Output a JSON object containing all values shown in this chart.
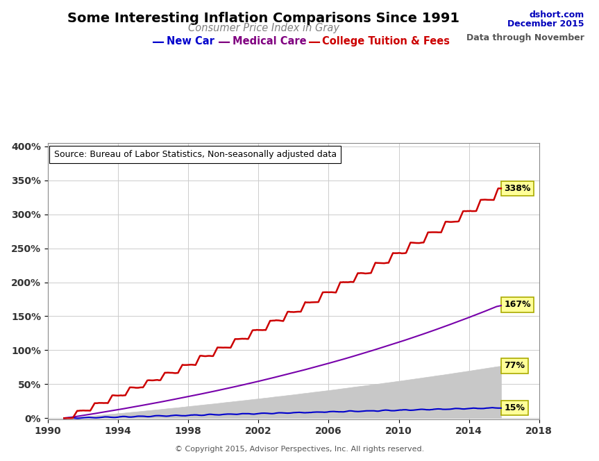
{
  "title": "Some Interesting Inflation Comparisons Since 1991",
  "subtitle": "Consumer Price Index in Gray",
  "source_text": "Source: Bureau of Labor Statistics, Non-seasonally adjusted data",
  "copyright_text": "© Copyright 2015, Advisor Perspectives, Inc. All rights reserved.",
  "dshort_text": "dshort.com",
  "date_text": "December 2015",
  "data_through_text": "Data through November",
  "title_color": "#000000",
  "subtitle_color": "#808080",
  "dshort_color": "#0000bb",
  "legend_new_car_color": "#0000cc",
  "legend_medical_color": "#800080",
  "legend_college_color": "#cc0000",
  "line_new_car_color": "#0000cc",
  "line_medical_color": "#7700aa",
  "line_college_color": "#cc0000",
  "cpi_fill_color": "#c8c8c8",
  "cpi_edge_color": "#a0a0a0",
  "annotation_bg": "#ffff99",
  "annotation_border": "#aaaa00",
  "final_college": 338,
  "final_medical": 167,
  "final_cpi": 77,
  "final_new_car": 15,
  "xmin": 1990.5,
  "xmax": 2017.5,
  "ymin": -0.02,
  "ymax": 4.05,
  "yticks": [
    0.0,
    0.5,
    1.0,
    1.5,
    2.0,
    2.5,
    3.0,
    3.5,
    4.0
  ],
  "ytick_labels": [
    "0%",
    "50%",
    "100%",
    "150%",
    "200%",
    "250%",
    "300%",
    "350%",
    "400%"
  ],
  "xticks": [
    1990,
    1994,
    1998,
    2002,
    2006,
    2010,
    2014,
    2018
  ],
  "grid_color": "#cccccc",
  "bg_color": "#ffffff"
}
